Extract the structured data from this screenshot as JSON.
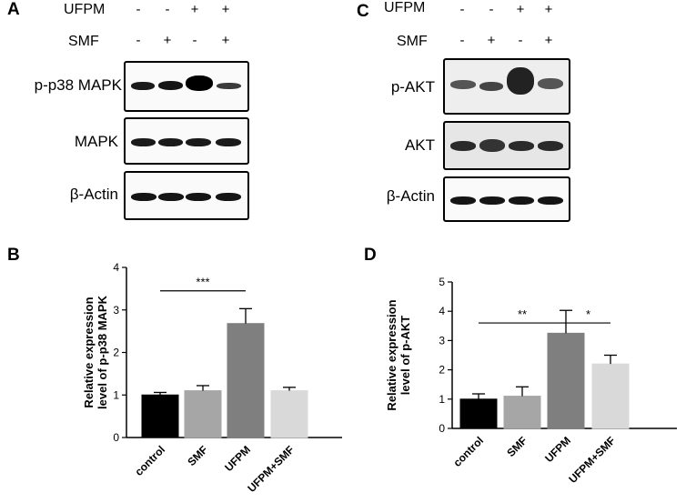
{
  "panels": {
    "A": "A",
    "B": "B",
    "C": "C",
    "D": "D"
  },
  "header": {
    "ufpm_label": "UFPM",
    "smf_label": "SMF",
    "ufpm_signs": [
      "-",
      "-",
      "+",
      "+"
    ],
    "smf_signs": [
      "-",
      "+",
      "-",
      "+"
    ]
  },
  "blots_left": [
    "p-p38 MAPK",
    "MAPK",
    "β-Actin"
  ],
  "blots_right": [
    "p-AKT",
    "AKT",
    "β-Actin"
  ],
  "colors": {
    "control": "#000000",
    "SMF": "#a6a6a6",
    "UFPM": "#7f7f7f",
    "UFPM+SMF": "#d9d9d9"
  },
  "chart_data": [
    {
      "type": "bar",
      "categories": [
        "control",
        "SMF",
        "UFPM",
        "UFPM+SMF"
      ],
      "values": [
        1.0,
        1.1,
        2.68,
        1.1
      ],
      "errors": [
        0.06,
        0.12,
        0.35,
        0.08
      ],
      "ylabel": "Relative  expression level of p-p38 MAPK",
      "ylim": [
        0,
        4
      ],
      "yticks": [
        "0",
        "1",
        "2",
        "3",
        "4"
      ],
      "annotations": [
        {
          "from": "control",
          "to": "UFPM",
          "label": "***",
          "y": 3.45
        }
      ]
    },
    {
      "type": "bar",
      "categories": [
        "control",
        "SMF",
        "UFPM",
        "UFPM+SMF"
      ],
      "values": [
        1.0,
        1.1,
        3.25,
        2.2
      ],
      "errors": [
        0.18,
        0.32,
        0.78,
        0.3
      ],
      "ylabel": "Relative expression level of p-AKT",
      "ylim": [
        0,
        5
      ],
      "yticks": [
        "0",
        "1",
        "2",
        "3",
        "4",
        "5"
      ],
      "annotations": [
        {
          "from": "control",
          "to": "UFPM",
          "label": "**",
          "y": 3.6
        },
        {
          "from": "UFPM",
          "to": "UFPM+SMF",
          "label": "*",
          "y": 3.6
        }
      ]
    }
  ]
}
